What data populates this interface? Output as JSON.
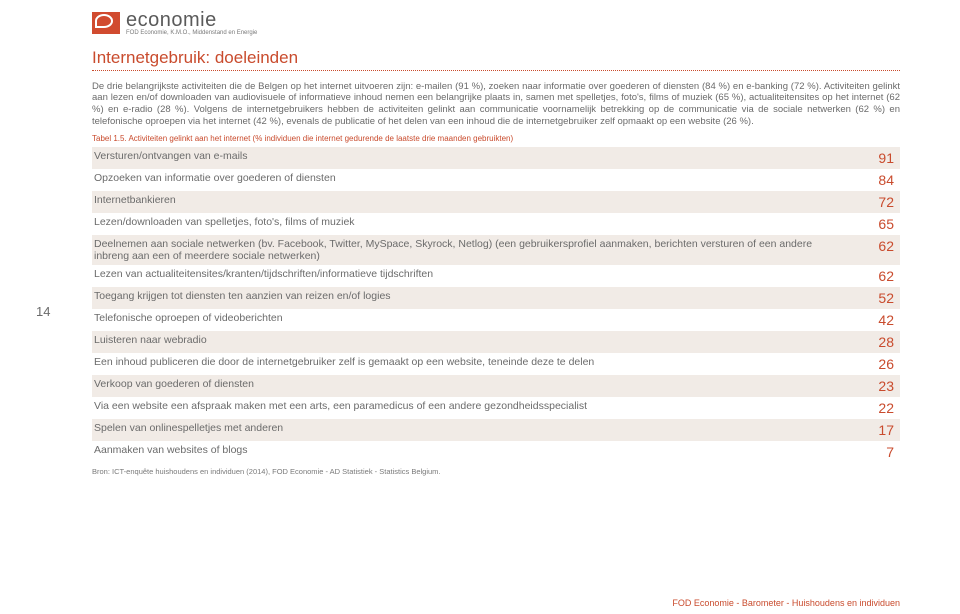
{
  "logo": {
    "main": "economie",
    "sub": "FOD Economie, K.M.O., Middenstand en Energie"
  },
  "page_number": "14",
  "title": "Internetgebruik: doeleinden",
  "paragraph": "De drie belangrijkste activiteiten die de Belgen op het internet uitvoeren zijn: e-mailen (91 %), zoeken naar informatie over goederen of diensten (84 %) en e-banking (72 %). Activiteiten gelinkt aan lezen en/of downloaden van audiovisuele of informatieve inhoud nemen een belangrijke plaats in, samen met spelletjes, foto's, films of muziek (65 %), actualiteitensites op het internet (62 %) en e-radio (28 %). Volgens de internetgebruikers hebben de activiteiten gelinkt aan communicatie voornamelijk betrekking op de communicatie via de sociale netwerken (62 %) en telefonische oproepen via het internet (42 %), evenals de publicatie of het delen van een inhoud die de internetgebruiker zelf opmaakt op een website (26 %).",
  "table_caption": "Tabel 1.5. Activiteiten gelinkt aan het internet (% individuen die internet gedurende de laatste drie maanden gebruikten)",
  "rows": [
    {
      "label": "Versturen/ontvangen van e-mails",
      "value": "91"
    },
    {
      "label": "Opzoeken van informatie over goederen of diensten",
      "value": "84"
    },
    {
      "label": "Internetbankieren",
      "value": "72"
    },
    {
      "label": "Lezen/downloaden van spelletjes, foto's, films of muziek",
      "value": "65"
    },
    {
      "label": "Deelnemen aan sociale netwerken (bv. Facebook, Twitter, MySpace, Skyrock, Netlog) (een gebruikersprofiel aanmaken, berichten versturen of een andere inbreng aan een of meerdere sociale netwerken)",
      "value": "62"
    },
    {
      "label": "Lezen van actualiteitensites/kranten/tijdschriften/informatieve tijdschriften",
      "value": "62"
    },
    {
      "label": "Toegang krijgen tot diensten ten aanzien van reizen en/of logies",
      "value": "52"
    },
    {
      "label": "Telefonische oproepen of videoberichten",
      "value": "42"
    },
    {
      "label": "Luisteren naar webradio",
      "value": "28"
    },
    {
      "label": "Een inhoud publiceren die door de internetgebruiker zelf is gemaakt op een website, teneinde deze te delen",
      "value": "26"
    },
    {
      "label": "Verkoop van goederen of diensten",
      "value": "23"
    },
    {
      "label": "Via een website een afspraak maken met een arts, een paramedicus of een andere gezondheidsspecialist",
      "value": "22"
    },
    {
      "label": "Spelen van onlinespelletjes met anderen",
      "value": "17"
    },
    {
      "label": "Aanmaken van websites of blogs",
      "value": "7"
    }
  ],
  "source": "Bron: ICT-enquête huishoudens en individuen (2014), FOD Economie - AD Statistiek - Statistics Belgium.",
  "footer": "FOD Economie - Barometer - Huishoudens en individuen",
  "colors": {
    "accent": "#c94b2d",
    "text": "#6b6b6b",
    "row_alt": "#f1ebe6"
  }
}
